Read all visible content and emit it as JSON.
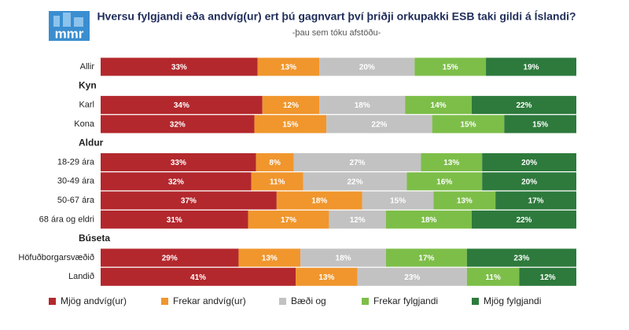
{
  "chart_data": {
    "type": "stacked-bar-horizontal",
    "logo": "mmr",
    "title": "Hversu fylgjandi eða andvíg(ur) ert þú gagnvart því þriðji orkupakki ESB taki gildi á Íslandi?",
    "subtitle": "-þau sem tóku afstöðu-",
    "categories": [
      "Allir",
      "Kyn",
      "Karl",
      "Kona",
      "Aldur",
      "18-29 ára",
      "30-49 ára",
      "50-67 ára",
      "68 ára og eldri",
      "Búseta",
      "Höfuðborgarsvæðið",
      "Landið"
    ],
    "series": [
      {
        "name": "Mjög andvíg(ur)",
        "color": "#b3282d",
        "values": [
          33,
          null,
          34,
          32,
          null,
          33,
          32,
          37,
          31,
          null,
          29,
          41
        ],
        "value_labels": [
          "33%",
          null,
          "34%",
          "32%",
          null,
          "33%",
          "32%",
          "37%",
          "31%",
          null,
          "29%",
          "41%"
        ]
      },
      {
        "name": "Frekar andvíg(ur)",
        "color": "#f0962d",
        "values": [
          13,
          null,
          12,
          15,
          null,
          8,
          11,
          18,
          17,
          null,
          13,
          13
        ],
        "value_labels": [
          "13%",
          null,
          "12%",
          "15%",
          null,
          "8%",
          "11%",
          "18%",
          "17%",
          null,
          "13%",
          "13%"
        ]
      },
      {
        "name": "Bæði og",
        "color": "#c2c2c2",
        "values": [
          20,
          null,
          18,
          22,
          null,
          27,
          22,
          15,
          12,
          null,
          18,
          23
        ],
        "value_labels": [
          "20%",
          null,
          "18%",
          "22%",
          null,
          "27%",
          "22%",
          "15%",
          "12%",
          null,
          "18%",
          "23%"
        ]
      },
      {
        "name": "Frekar fylgjandi",
        "color": "#7dbe49",
        "values": [
          15,
          null,
          14,
          15,
          null,
          13,
          16,
          13,
          18,
          null,
          17,
          11
        ],
        "value_labels": [
          "15%",
          null,
          "14%",
          "15%",
          null,
          "13%",
          "16%",
          "13%",
          "18%",
          null,
          "17%",
          "11%"
        ]
      },
      {
        "name": "Mjög fylgjandi",
        "color": "#2d7a3c",
        "values": [
          19,
          null,
          22,
          15,
          null,
          20,
          20,
          17,
          22,
          null,
          23,
          12
        ],
        "value_labels": [
          "19%",
          null,
          "22%",
          "15%",
          null,
          "20%",
          "20%",
          "17%",
          "22%",
          null,
          "23%",
          "12%"
        ]
      }
    ]
  }
}
